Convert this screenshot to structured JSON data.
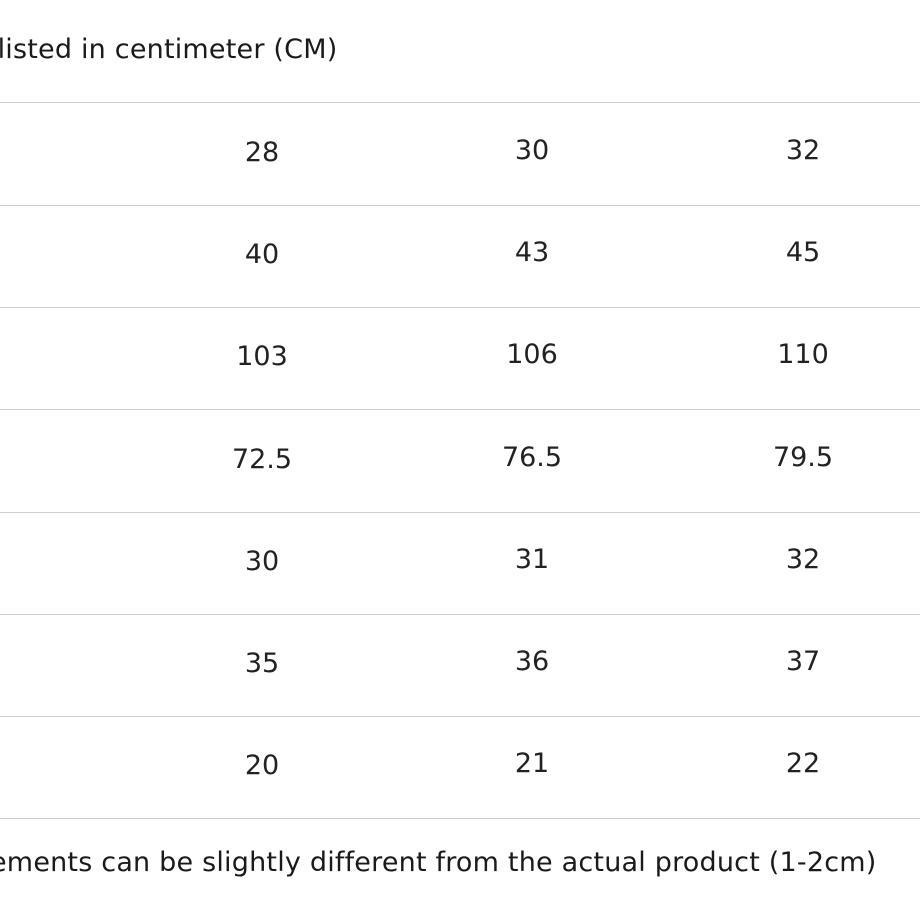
{
  "header_note": "e listed in centimeter (CM)",
  "size_table": {
    "rows": [
      [
        "28",
        "30",
        "32"
      ],
      [
        "40",
        "43",
        "45"
      ],
      [
        "103",
        "106",
        "110"
      ],
      [
        "72.5",
        "76.5",
        "79.5"
      ],
      [
        "30",
        "31",
        "32"
      ],
      [
        "35",
        "36",
        "37"
      ],
      [
        "20",
        "21",
        "22"
      ]
    ]
  },
  "footer_note": "ements can be slightly different from the actual product (1-2cm)"
}
